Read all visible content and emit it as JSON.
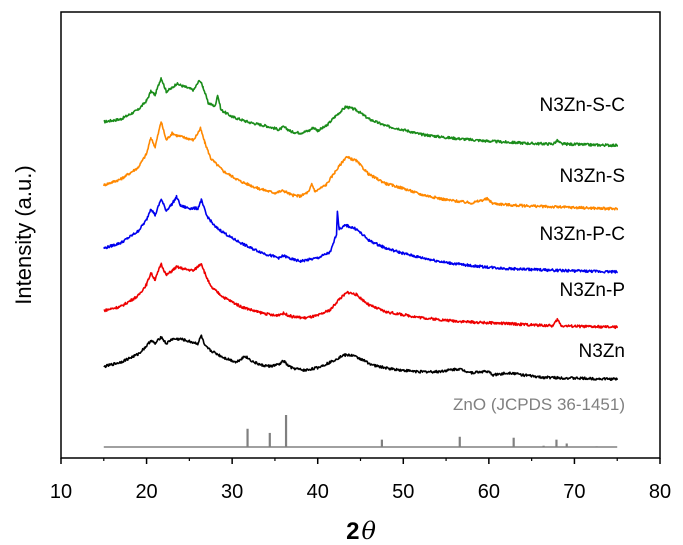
{
  "chart_data": {
    "type": "line",
    "title": "",
    "xlabel": {
      "number": "2",
      "symbol": "θ"
    },
    "ylabel": "Intensity (a.u.)",
    "xlim": [
      10,
      80
    ],
    "xticks": [
      10,
      20,
      30,
      40,
      50,
      60,
      70,
      80
    ],
    "yticks": "none",
    "grid": false,
    "legend": "none (series labeled inline at right)",
    "series": [
      {
        "name": "N3Zn-S-C",
        "color": "#1a8c1a",
        "x_range": [
          15,
          75
        ],
        "points": [
          [
            15,
            0.9
          ],
          [
            17,
            1.5
          ],
          [
            19,
            3.5
          ],
          [
            20,
            5.5
          ],
          [
            20.5,
            7.5
          ],
          [
            21,
            6.8
          ],
          [
            21.7,
            10.5
          ],
          [
            22.3,
            7.5
          ],
          [
            23,
            8.3
          ],
          [
            23.5,
            9.2
          ],
          [
            24.5,
            8.5
          ],
          [
            25.5,
            7.8
          ],
          [
            26.2,
            10
          ],
          [
            26.6,
            8.5
          ],
          [
            27.2,
            5
          ],
          [
            28,
            4.3
          ],
          [
            28.3,
            6.8
          ],
          [
            28.7,
            3.5
          ],
          [
            30,
            2
          ],
          [
            32,
            0.8
          ],
          [
            34,
            0
          ],
          [
            35.5,
            -0.8
          ],
          [
            36,
            -0.2
          ],
          [
            37,
            -1.3
          ],
          [
            38,
            -1.5
          ],
          [
            39,
            -1
          ],
          [
            39.5,
            -0.3
          ],
          [
            40,
            -1
          ],
          [
            41,
            0
          ],
          [
            42,
            2
          ],
          [
            43.3,
            4.2
          ],
          [
            44.5,
            3.5
          ],
          [
            46,
            1.5
          ],
          [
            48,
            0
          ],
          [
            50,
            -0.8
          ],
          [
            52,
            -1.8
          ],
          [
            55,
            -2.5
          ],
          [
            58,
            -3
          ],
          [
            60,
            -3.3
          ],
          [
            62,
            -3.5
          ],
          [
            65,
            -3.8
          ],
          [
            67.5,
            -3.9
          ],
          [
            68,
            -3.2
          ],
          [
            68.5,
            -3.9
          ],
          [
            72,
            -4.1
          ],
          [
            75,
            -4.2
          ]
        ]
      },
      {
        "name": "N3Zn-S",
        "color": "#ff8800",
        "x_range": [
          15,
          75
        ],
        "points": [
          [
            15,
            0.2
          ],
          [
            17,
            1.5
          ],
          [
            19,
            4
          ],
          [
            20,
            7
          ],
          [
            20.5,
            10.5
          ],
          [
            21,
            8.5
          ],
          [
            21.7,
            14
          ],
          [
            22.3,
            10
          ],
          [
            23,
            11.5
          ],
          [
            23.5,
            11
          ],
          [
            24.5,
            10.5
          ],
          [
            25.5,
            10
          ],
          [
            26.3,
            12.5
          ],
          [
            26.8,
            9.5
          ],
          [
            27.5,
            6
          ],
          [
            29,
            3.2
          ],
          [
            31,
            1
          ],
          [
            33,
            -0.5
          ],
          [
            35,
            -1.5
          ],
          [
            36,
            -1
          ],
          [
            37,
            -2
          ],
          [
            38,
            -2.2
          ],
          [
            39,
            -1.2
          ],
          [
            39.3,
            0.5
          ],
          [
            39.7,
            -1.2
          ],
          [
            41,
            0.3
          ],
          [
            42,
            3
          ],
          [
            43.3,
            6.3
          ],
          [
            44.5,
            5.5
          ],
          [
            46,
            2.5
          ],
          [
            48,
            0.5
          ],
          [
            50,
            -0.5
          ],
          [
            52,
            -1.8
          ],
          [
            55,
            -3
          ],
          [
            58,
            -3.7
          ],
          [
            59.8,
            -2.8
          ],
          [
            60.5,
            -3.8
          ],
          [
            63,
            -4.2
          ],
          [
            67,
            -4.5
          ],
          [
            72,
            -4.8
          ],
          [
            75,
            -5
          ]
        ]
      },
      {
        "name": "N3Zn-P-C",
        "color": "#0000ee",
        "x_range": [
          15,
          75
        ],
        "points": [
          [
            15,
            0.8
          ],
          [
            17,
            2
          ],
          [
            19,
            4.5
          ],
          [
            20,
            7
          ],
          [
            20.5,
            9.5
          ],
          [
            21,
            8
          ],
          [
            21.7,
            11.5
          ],
          [
            22.3,
            9
          ],
          [
            23,
            10.5
          ],
          [
            23.5,
            12
          ],
          [
            24,
            10
          ],
          [
            25,
            9.5
          ],
          [
            26,
            9.5
          ],
          [
            26.4,
            11.3
          ],
          [
            27,
            8
          ],
          [
            28,
            5.5
          ],
          [
            30,
            3
          ],
          [
            32,
            1
          ],
          [
            34,
            -0.5
          ],
          [
            35.5,
            -1.3
          ],
          [
            36,
            -0.8
          ],
          [
            37,
            -1.6
          ],
          [
            38,
            -2
          ],
          [
            40,
            -1.3
          ],
          [
            41.5,
            0
          ],
          [
            42.2,
            4
          ],
          [
            42.3,
            9
          ],
          [
            42.5,
            5
          ],
          [
            43.3,
            5.8
          ],
          [
            44.5,
            5
          ],
          [
            46,
            2.5
          ],
          [
            48,
            0.8
          ],
          [
            50,
            -0.3
          ],
          [
            52,
            -1.2
          ],
          [
            55,
            -2.3
          ],
          [
            58,
            -3
          ],
          [
            62,
            -3.6
          ],
          [
            65,
            -3.8
          ],
          [
            68,
            -4
          ],
          [
            72,
            -4.2
          ],
          [
            75,
            -4.3
          ]
        ]
      },
      {
        "name": "N3Zn-P",
        "color": "#ee0000",
        "x_range": [
          15,
          75
        ],
        "points": [
          [
            15,
            0.3
          ],
          [
            17,
            1.2
          ],
          [
            19,
            3.5
          ],
          [
            20,
            6
          ],
          [
            20.5,
            8.5
          ],
          [
            21,
            7
          ],
          [
            21.7,
            10.5
          ],
          [
            22.3,
            8
          ],
          [
            23,
            9
          ],
          [
            23.5,
            9.8
          ],
          [
            24.5,
            9.3
          ],
          [
            25.5,
            9
          ],
          [
            26.4,
            10.6
          ],
          [
            26.8,
            8.5
          ],
          [
            27.5,
            5.5
          ],
          [
            29,
            3.2
          ],
          [
            31,
            1.2
          ],
          [
            33,
            0
          ],
          [
            35,
            -0.8
          ],
          [
            36,
            -0.3
          ],
          [
            37,
            -1
          ],
          [
            38.5,
            -1.3
          ],
          [
            40,
            -0.8
          ],
          [
            41.5,
            0.5
          ],
          [
            42.5,
            2.8
          ],
          [
            43.5,
            4.3
          ],
          [
            44.5,
            3.8
          ],
          [
            46,
            1.5
          ],
          [
            48,
            0
          ],
          [
            50,
            -0.6
          ],
          [
            52,
            -1.2
          ],
          [
            55,
            -1.8
          ],
          [
            58,
            -2.2
          ],
          [
            62,
            -2.5
          ],
          [
            65,
            -2.8
          ],
          [
            67.5,
            -3
          ],
          [
            68,
            -1.6
          ],
          [
            68.5,
            -3
          ],
          [
            72,
            -3.2
          ],
          [
            75,
            -3.3
          ]
        ]
      },
      {
        "name": "N3Zn",
        "color": "#000000",
        "x_range": [
          15,
          75
        ],
        "points": [
          [
            15,
            0.5
          ],
          [
            17,
            1.5
          ],
          [
            19,
            3.2
          ],
          [
            20,
            5
          ],
          [
            20.5,
            6.2
          ],
          [
            21,
            5.5
          ],
          [
            21.7,
            7
          ],
          [
            22.3,
            5.5
          ],
          [
            23,
            6.5
          ],
          [
            24,
            6.5
          ],
          [
            25,
            6
          ],
          [
            26,
            5.5
          ],
          [
            26.4,
            7.3
          ],
          [
            26.8,
            5
          ],
          [
            27.5,
            4
          ],
          [
            29,
            2.5
          ],
          [
            30.5,
            1.5
          ],
          [
            31.5,
            2.8
          ],
          [
            32.5,
            1.5
          ],
          [
            33.5,
            0.8
          ],
          [
            34.5,
            0.6
          ],
          [
            35.5,
            1
          ],
          [
            36,
            1.8
          ],
          [
            36.5,
            0.8
          ],
          [
            37,
            0.2
          ],
          [
            38.5,
            -0.3
          ],
          [
            40,
            0.3
          ],
          [
            41.5,
            1.5
          ],
          [
            43,
            3
          ],
          [
            44,
            3
          ],
          [
            45,
            2.2
          ],
          [
            46.5,
            0.8
          ],
          [
            48,
            0.2
          ],
          [
            50,
            -0.3
          ],
          [
            52,
            -0.6
          ],
          [
            54,
            -0.6
          ],
          [
            55.5,
            -0.2
          ],
          [
            56.5,
            0
          ],
          [
            58,
            -0.8
          ],
          [
            59.8,
            -0.5
          ],
          [
            60.5,
            -1.3
          ],
          [
            62.5,
            -0.8
          ],
          [
            64,
            -1.3
          ],
          [
            66,
            -1.8
          ],
          [
            68,
            -1.9
          ],
          [
            70,
            -2
          ],
          [
            72,
            -2.1
          ],
          [
            75,
            -2.2
          ]
        ]
      }
    ],
    "reference": {
      "name": "ZnO (JCPDS 36-1451)",
      "color": "#808080",
      "type": "stick",
      "peaks": [
        {
          "x": 31.8,
          "intensity": 57
        },
        {
          "x": 34.4,
          "intensity": 44
        },
        {
          "x": 36.3,
          "intensity": 100
        },
        {
          "x": 47.5,
          "intensity": 23
        },
        {
          "x": 56.6,
          "intensity": 32
        },
        {
          "x": 62.9,
          "intensity": 29
        },
        {
          "x": 66.4,
          "intensity": 4
        },
        {
          "x": 67.9,
          "intensity": 23
        },
        {
          "x": 69.1,
          "intensity": 11
        },
        {
          "x": 72.6,
          "intensity": 2
        }
      ]
    }
  }
}
